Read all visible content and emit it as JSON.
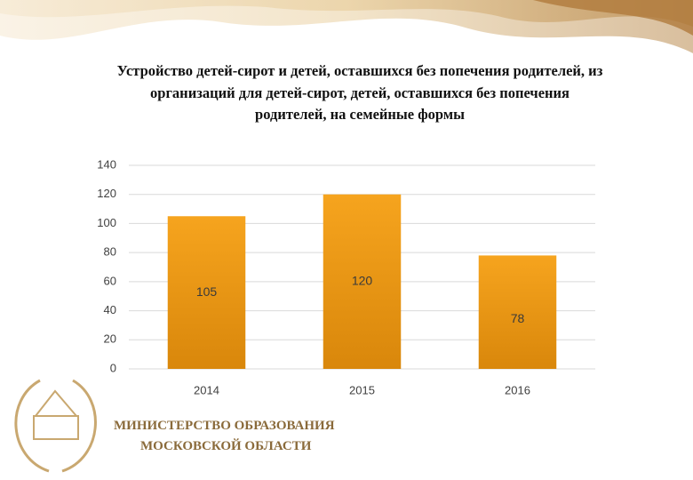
{
  "chart_data": {
    "type": "bar",
    "title": "Устройство детей-сирот и детей, оставшихся без попечения родителей,  из организаций для детей-сирот, детей, оставшихся без попечения родителей, на семейные формы",
    "categories": [
      "2014",
      "2015",
      "2016"
    ],
    "values": [
      105,
      120,
      78
    ],
    "color": "#f3a01a",
    "ylim": [
      0,
      140
    ],
    "yticks": [
      0,
      20,
      40,
      60,
      80,
      100,
      120,
      140
    ],
    "grid": true
  },
  "footer": {
    "lines": [
      "МИНИСТЕРСТВО ОБРАЗОВАНИЯ",
      "МОСКОВСКОЙ ОБЛАСТИ"
    ]
  }
}
